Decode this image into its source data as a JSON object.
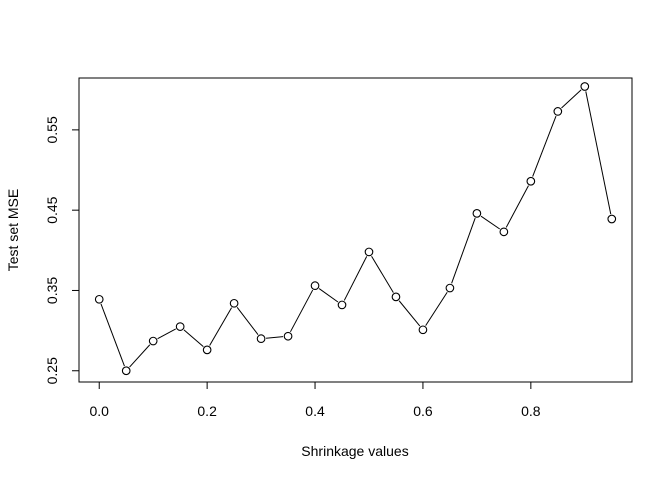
{
  "chart_data": {
    "type": "line",
    "title": "",
    "xlabel": "Shrinkage values",
    "ylabel": "Test set MSE",
    "xlim": [
      -0.0375,
      0.9875
    ],
    "ylim": [
      0.236,
      0.6146
    ],
    "x_ticks": [
      "0.0",
      "0.2",
      "0.4",
      "0.6",
      "0.8"
    ],
    "x_tick_values": [
      0.0,
      0.2,
      0.4,
      0.6,
      0.8
    ],
    "y_ticks": [
      "0.25",
      "0.35",
      "0.45",
      "0.55"
    ],
    "y_tick_values": [
      0.25,
      0.35,
      0.45,
      0.55
    ],
    "grid": false,
    "line_color": "#000000",
    "marker": "open-circle",
    "x": [
      0.0,
      0.05,
      0.1,
      0.15,
      0.2,
      0.25,
      0.3,
      0.35,
      0.4,
      0.45,
      0.5,
      0.55,
      0.6,
      0.65,
      0.7,
      0.75,
      0.8,
      0.85,
      0.9,
      0.95
    ],
    "values": [
      0.339,
      0.25,
      0.287,
      0.305,
      0.276,
      0.334,
      0.29,
      0.293,
      0.356,
      0.332,
      0.398,
      0.342,
      0.301,
      0.353,
      0.446,
      0.423,
      0.486,
      0.573,
      0.604,
      0.439
    ]
  }
}
